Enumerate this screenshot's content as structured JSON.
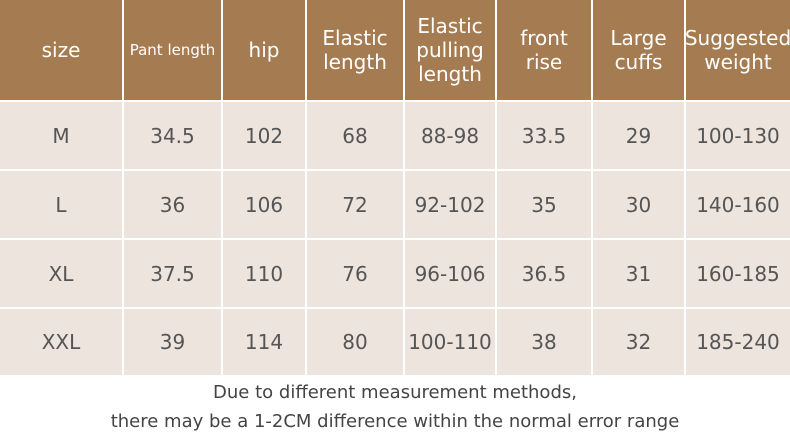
{
  "table": {
    "header": [
      [
        "size"
      ],
      [
        "Pant length"
      ],
      [
        "hip"
      ],
      [
        "Elastic",
        "length"
      ],
      [
        "Elastic",
        "pulling",
        "length"
      ],
      [
        "front",
        "rise"
      ],
      [
        "Large",
        "cuffs"
      ],
      [
        "Suggested",
        "weight"
      ]
    ],
    "rows": [
      [
        "M",
        "34.5",
        "102",
        "68",
        "88-98",
        "33.5",
        "29",
        "100-130"
      ],
      [
        "L",
        "36",
        "106",
        "72",
        "92-102",
        "35",
        "30",
        "140-160"
      ],
      [
        "XL",
        "37.5",
        "110",
        "76",
        "96-106",
        "36.5",
        "31",
        "160-185"
      ],
      [
        "XXL",
        "39",
        "114",
        "80",
        "100-110",
        "38",
        "32",
        "185-240"
      ]
    ]
  },
  "footer": [
    "Due to different measurement methods,",
    "there may be a 1-2CM difference within the normal error range"
  ]
}
